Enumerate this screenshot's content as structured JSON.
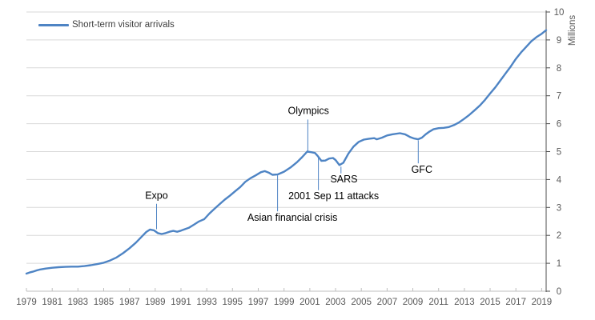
{
  "legend": {
    "label": "Short-term visitor arrivals"
  },
  "colors": {
    "series": "#4e84c4",
    "callout": "#4e84c4",
    "grid": "#d9d9d9",
    "x_axis": "#bfbfbf",
    "y_axis": "#4d4d4d",
    "tick_label": "#595959",
    "annotation_text": "#000000",
    "background": "#ffffff"
  },
  "chart_data": {
    "type": "line",
    "title": "",
    "xlabel": "",
    "ylabel": "Millions",
    "xlim": [
      1979,
      2019.35
    ],
    "ylim": [
      0,
      10
    ],
    "grid": "horizontal",
    "legend_position": "top-left",
    "x_ticks": [
      1979,
      1981,
      1983,
      1985,
      1987,
      1989,
      1991,
      1993,
      1995,
      1997,
      1999,
      2001,
      2003,
      2005,
      2007,
      2009,
      2011,
      2013,
      2015,
      2017,
      2019
    ],
    "y_ticks": [
      0,
      1,
      2,
      3,
      4,
      5,
      6,
      7,
      8,
      9,
      10
    ],
    "series": [
      {
        "name": "Short-term visitor arrivals",
        "units": "millions",
        "points": [
          [
            1979.0,
            0.63
          ],
          [
            1979.25,
            0.67
          ],
          [
            1979.5,
            0.7
          ],
          [
            1979.75,
            0.74
          ],
          [
            1980.0,
            0.77
          ],
          [
            1980.5,
            0.81
          ],
          [
            1981.0,
            0.84
          ],
          [
            1981.5,
            0.86
          ],
          [
            1982.0,
            0.87
          ],
          [
            1982.5,
            0.88
          ],
          [
            1983.0,
            0.88
          ],
          [
            1983.5,
            0.9
          ],
          [
            1984.0,
            0.93
          ],
          [
            1984.5,
            0.97
          ],
          [
            1985.0,
            1.02
          ],
          [
            1985.5,
            1.1
          ],
          [
            1986.0,
            1.21
          ],
          [
            1986.5,
            1.36
          ],
          [
            1987.0,
            1.54
          ],
          [
            1987.5,
            1.74
          ],
          [
            1988.0,
            1.98
          ],
          [
            1988.3,
            2.12
          ],
          [
            1988.6,
            2.21
          ],
          [
            1988.9,
            2.18
          ],
          [
            1989.2,
            2.08
          ],
          [
            1989.5,
            2.05
          ],
          [
            1989.8,
            2.08
          ],
          [
            1990.1,
            2.13
          ],
          [
            1990.4,
            2.16
          ],
          [
            1990.7,
            2.13
          ],
          [
            1991.0,
            2.17
          ],
          [
            1991.3,
            2.22
          ],
          [
            1991.6,
            2.27
          ],
          [
            1992.0,
            2.38
          ],
          [
            1992.4,
            2.5
          ],
          [
            1992.8,
            2.58
          ],
          [
            1993.2,
            2.78
          ],
          [
            1993.6,
            2.95
          ],
          [
            1994.0,
            3.12
          ],
          [
            1994.4,
            3.28
          ],
          [
            1994.8,
            3.42
          ],
          [
            1995.2,
            3.58
          ],
          [
            1995.6,
            3.73
          ],
          [
            1996.0,
            3.92
          ],
          [
            1996.4,
            4.05
          ],
          [
            1996.8,
            4.15
          ],
          [
            1997.2,
            4.26
          ],
          [
            1997.5,
            4.3
          ],
          [
            1997.8,
            4.25
          ],
          [
            1998.1,
            4.17
          ],
          [
            1998.5,
            4.18
          ],
          [
            1999.0,
            4.28
          ],
          [
            1999.5,
            4.43
          ],
          [
            2000.0,
            4.62
          ],
          [
            2000.4,
            4.8
          ],
          [
            2000.8,
            5.0
          ],
          [
            2001.1,
            4.98
          ],
          [
            2001.4,
            4.95
          ],
          [
            2001.6,
            4.85
          ],
          [
            2001.9,
            4.67
          ],
          [
            2002.2,
            4.68
          ],
          [
            2002.5,
            4.75
          ],
          [
            2002.8,
            4.77
          ],
          [
            2003.0,
            4.7
          ],
          [
            2003.3,
            4.52
          ],
          [
            2003.6,
            4.6
          ],
          [
            2004.0,
            4.93
          ],
          [
            2004.4,
            5.18
          ],
          [
            2004.8,
            5.35
          ],
          [
            2005.2,
            5.43
          ],
          [
            2005.6,
            5.46
          ],
          [
            2006.0,
            5.48
          ],
          [
            2006.2,
            5.44
          ],
          [
            2006.6,
            5.5
          ],
          [
            2007.0,
            5.58
          ],
          [
            2007.4,
            5.62
          ],
          [
            2008.0,
            5.66
          ],
          [
            2008.4,
            5.62
          ],
          [
            2008.8,
            5.52
          ],
          [
            2009.1,
            5.47
          ],
          [
            2009.4,
            5.44
          ],
          [
            2009.7,
            5.5
          ],
          [
            2010.0,
            5.62
          ],
          [
            2010.3,
            5.72
          ],
          [
            2010.6,
            5.8
          ],
          [
            2011.0,
            5.84
          ],
          [
            2011.4,
            5.85
          ],
          [
            2011.8,
            5.88
          ],
          [
            2012.2,
            5.95
          ],
          [
            2012.6,
            6.05
          ],
          [
            2013.0,
            6.18
          ],
          [
            2013.4,
            6.32
          ],
          [
            2013.8,
            6.48
          ],
          [
            2014.2,
            6.65
          ],
          [
            2014.6,
            6.85
          ],
          [
            2015.0,
            7.08
          ],
          [
            2015.4,
            7.3
          ],
          [
            2015.8,
            7.55
          ],
          [
            2016.2,
            7.8
          ],
          [
            2016.6,
            8.05
          ],
          [
            2017.0,
            8.32
          ],
          [
            2017.4,
            8.55
          ],
          [
            2017.8,
            8.75
          ],
          [
            2018.2,
            8.95
          ],
          [
            2018.6,
            9.1
          ],
          [
            2019.0,
            9.22
          ],
          [
            2019.35,
            9.35
          ]
        ]
      }
    ],
    "annotations": [
      {
        "label": "Expo",
        "line_x": 1989.1,
        "line_v1": 3.13,
        "line_v2": 2.22,
        "text_x": 1989.1,
        "text_v": 3.2,
        "placement": "above"
      },
      {
        "label": "Asian financial crisis",
        "line_x": 1998.5,
        "line_v1": 4.15,
        "line_v2": 2.86,
        "text_x": 1999.65,
        "text_v": 2.82,
        "placement": "below"
      },
      {
        "label": "Olympics",
        "line_x": 2000.85,
        "line_v1": 6.15,
        "line_v2": 5.02,
        "text_x": 2000.9,
        "text_v": 6.25,
        "placement": "above"
      },
      {
        "label": "2001 Sep 11 attacks",
        "line_x": 2001.67,
        "line_v1": 4.8,
        "line_v2": 3.62,
        "text_x": 2002.85,
        "text_v": 3.58,
        "placement": "below"
      },
      {
        "label": "SARS",
        "line_x": 2003.42,
        "line_v1": 4.46,
        "line_v2": 4.22,
        "text_x": 2003.65,
        "text_v": 4.17,
        "placement": "below"
      },
      {
        "label": "GFC",
        "line_x": 2009.42,
        "line_v1": 5.4,
        "line_v2": 4.58,
        "text_x": 2009.7,
        "text_v": 4.52,
        "placement": "below"
      }
    ]
  }
}
